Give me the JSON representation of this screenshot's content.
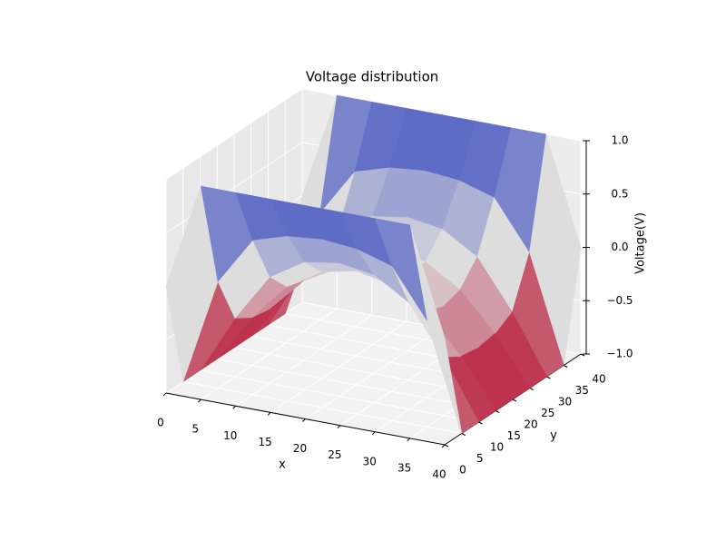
{
  "chart_data": {
    "type": "surface",
    "title": "Voltage distribution",
    "x_label": "x",
    "y_label": "y",
    "z_label": "Voltage(V)",
    "x": [
      0,
      5,
      10,
      15,
      20,
      25,
      30,
      35,
      40
    ],
    "y": [
      0,
      5,
      10,
      15,
      20,
      25,
      30,
      35,
      40
    ],
    "z": [
      [
        0,
        1,
        1,
        1,
        1,
        1,
        1,
        1,
        0
      ],
      [
        -1,
        0,
        0.45,
        0.55,
        0.58,
        0.55,
        0.45,
        0,
        -1
      ],
      [
        -1,
        -0.45,
        0,
        0.2,
        0.25,
        0.2,
        0,
        -0.45,
        -1
      ],
      [
        -1,
        -0.55,
        -0.2,
        0,
        0.07,
        0,
        -0.2,
        -0.55,
        -1
      ],
      [
        -1,
        -0.58,
        -0.25,
        -0.07,
        0,
        -0.07,
        -0.25,
        -0.58,
        -1
      ],
      [
        -1,
        -0.55,
        -0.2,
        0,
        0.07,
        0,
        -0.2,
        -0.55,
        -1
      ],
      [
        -1,
        -0.45,
        0,
        0.2,
        0.25,
        0.2,
        0,
        -0.45,
        -1
      ],
      [
        -1,
        0,
        0.45,
        0.55,
        0.58,
        0.55,
        0.45,
        0,
        -1
      ],
      [
        0,
        1,
        1,
        1,
        1,
        1,
        1,
        1,
        0
      ]
    ],
    "colormap": [
      "#b40426",
      "#dddddd",
      "#3b4cc0"
    ],
    "xlim": [
      0,
      40
    ],
    "ylim": [
      0,
      40
    ],
    "zlim": [
      -1,
      1
    ],
    "xticks": [
      0,
      5,
      10,
      15,
      20,
      25,
      30,
      35,
      40
    ],
    "yticks": [
      0,
      5,
      10,
      15,
      20,
      25,
      30,
      35,
      40
    ],
    "zticks": [
      {
        "value": -1,
        "label": "−1.0"
      },
      {
        "value": -0.5,
        "label": "−0.5"
      },
      {
        "value": 0,
        "label": "0.0"
      },
      {
        "value": 0.5,
        "label": "0.5"
      },
      {
        "value": 1,
        "label": "1.0"
      }
    ],
    "grid": true
  }
}
